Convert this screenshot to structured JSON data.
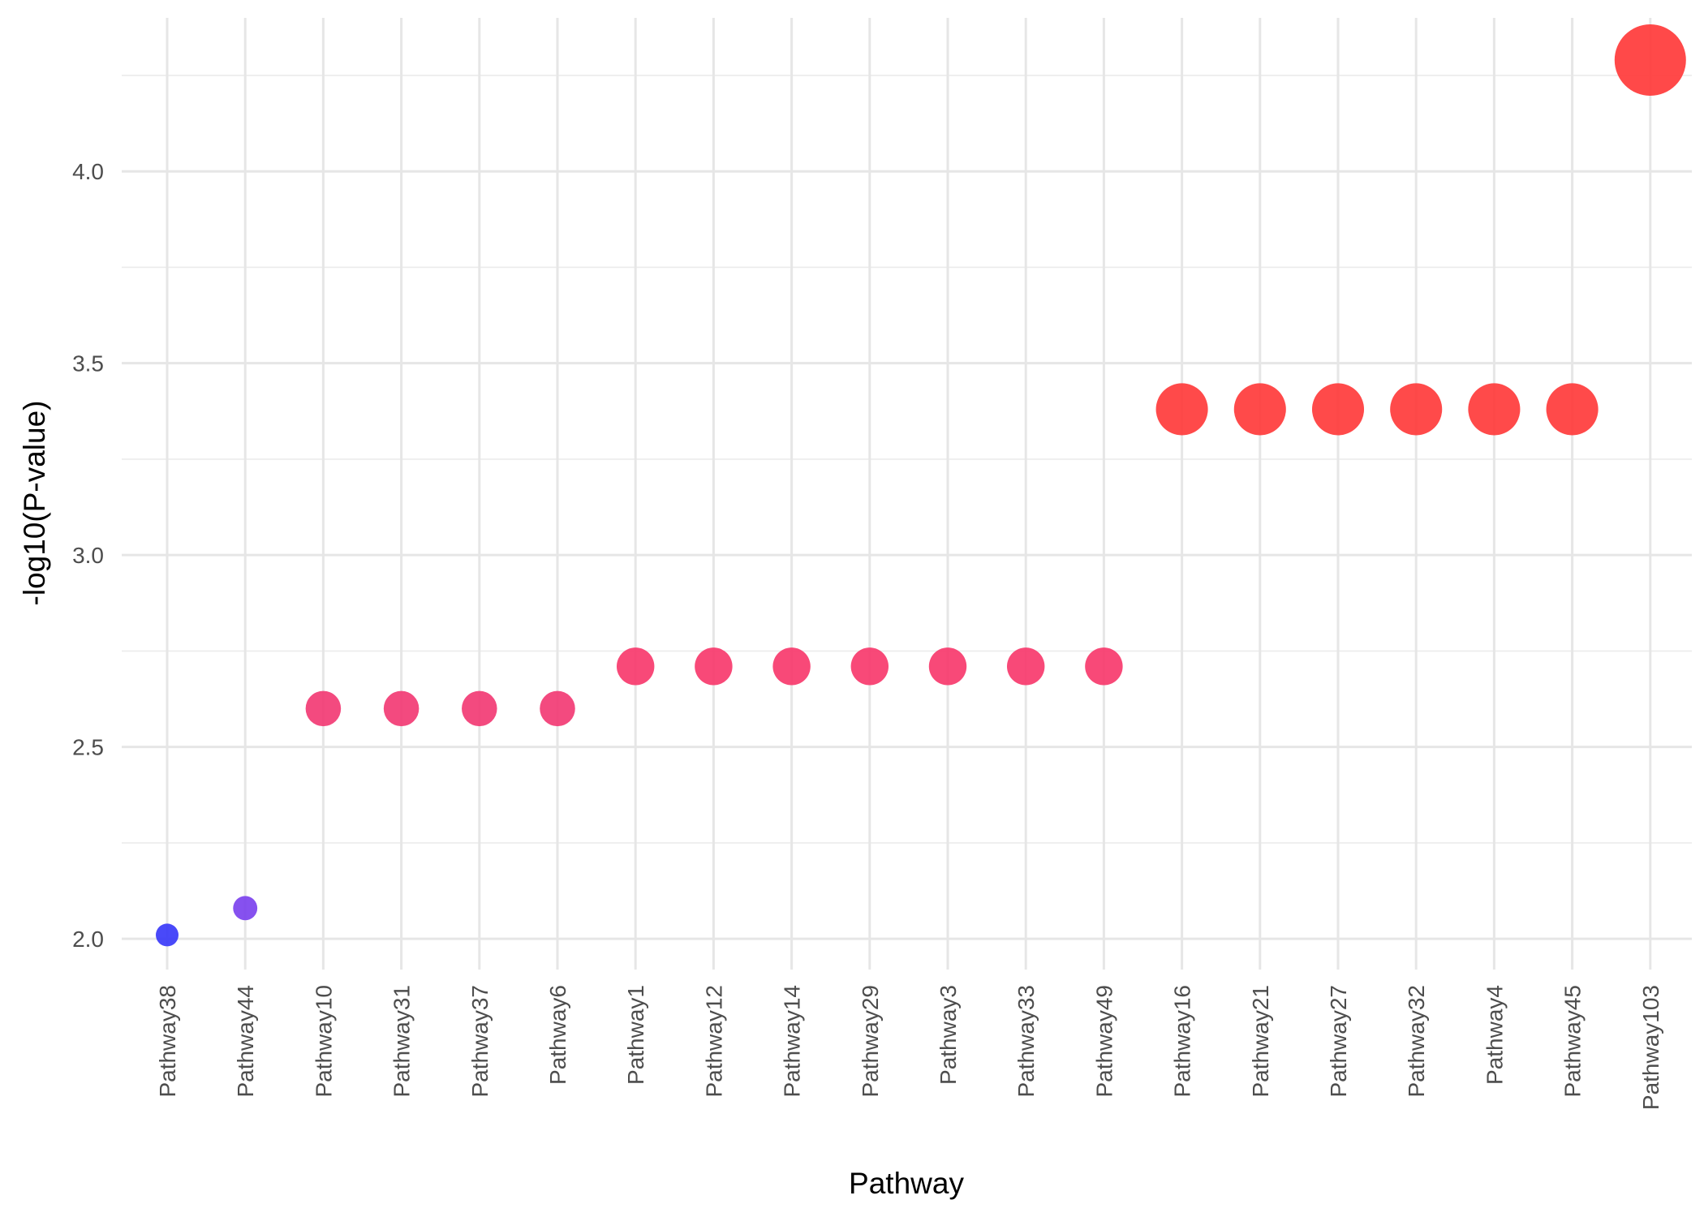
{
  "chart_data": {
    "type": "scatter",
    "title": "",
    "xlabel": "Pathway",
    "ylabel": "-log10(P-value)",
    "categories": [
      "Pathway38",
      "Pathway44",
      "Pathway10",
      "Pathway31",
      "Pathway37",
      "Pathway6",
      "Pathway1",
      "Pathway12",
      "Pathway14",
      "Pathway29",
      "Pathway3",
      "Pathway33",
      "Pathway49",
      "Pathway16",
      "Pathway21",
      "Pathway27",
      "Pathway32",
      "Pathway4",
      "Pathway45",
      "Pathway103"
    ],
    "values": [
      2.01,
      2.08,
      2.6,
      2.6,
      2.6,
      2.6,
      2.71,
      2.71,
      2.71,
      2.71,
      2.71,
      2.71,
      2.71,
      3.38,
      3.38,
      3.38,
      3.38,
      3.38,
      3.38,
      4.29
    ],
    "point_colors": [
      "#3a3af8",
      "#7c42ee",
      "#f23b74",
      "#f23b74",
      "#f23b74",
      "#f23b74",
      "#f73a6c",
      "#f73a6c",
      "#f73a6c",
      "#f73a6c",
      "#f73a6c",
      "#f73a6c",
      "#f73a6c",
      "#ff3b3b",
      "#ff3b3b",
      "#ff3b3b",
      "#ff3b3b",
      "#ff3b3b",
      "#ff3b3b",
      "#ff3a3a"
    ],
    "ylim": [
      1.92,
      4.4
    ],
    "yticks": [
      2.0,
      2.5,
      3.0,
      3.5,
      4.0
    ],
    "ytick_labels": [
      "2.0",
      "2.5",
      "3.0",
      "3.5",
      "4.0"
    ],
    "grid": true,
    "legend": "none"
  }
}
